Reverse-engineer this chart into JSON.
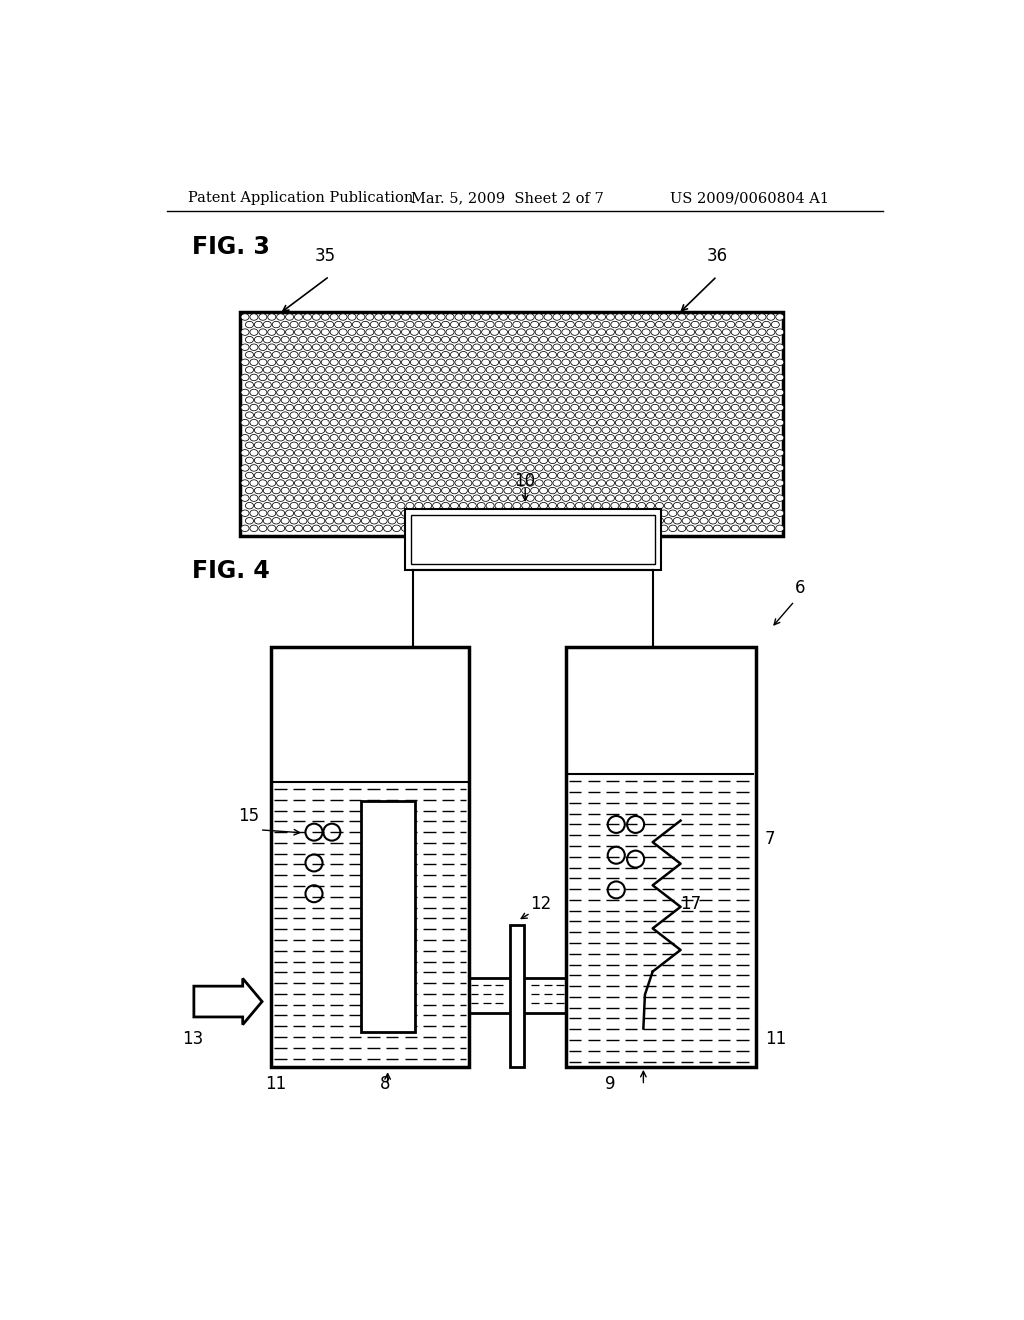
{
  "bg_color": "#ffffff",
  "header_left": "Patent Application Publication",
  "header_mid": "Mar. 5, 2009  Sheet 2 of 7",
  "header_right": "US 2009/0060804 A1",
  "fig3_label": "FIG. 3",
  "fig4_label": "FIG. 4",
  "label_35": "35",
  "label_36": "36",
  "label_6": "6",
  "label_7": "7",
  "label_8": "8",
  "label_9": "9",
  "label_10": "10",
  "label_11": "11",
  "label_12": "12",
  "label_13": "13",
  "label_15": "15",
  "label_17": "17"
}
